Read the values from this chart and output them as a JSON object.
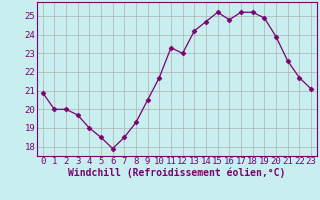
{
  "x": [
    0,
    1,
    2,
    3,
    4,
    5,
    6,
    7,
    8,
    9,
    10,
    11,
    12,
    13,
    14,
    15,
    16,
    17,
    18,
    19,
    20,
    21,
    22,
    23
  ],
  "y": [
    20.9,
    20.0,
    20.0,
    19.7,
    19.0,
    18.5,
    17.9,
    18.5,
    19.3,
    20.5,
    21.7,
    23.3,
    23.0,
    24.2,
    24.7,
    25.2,
    24.8,
    25.2,
    25.2,
    24.9,
    23.9,
    22.6,
    21.7,
    21.1
  ],
  "line_color": "#7b0070",
  "marker": "D",
  "marker_size": 2.5,
  "bg_color": "#c8eef0",
  "grid_color": "#b0b0b0",
  "ylim": [
    17.5,
    25.75
  ],
  "yticks": [
    18,
    19,
    20,
    21,
    22,
    23,
    24,
    25
  ],
  "xlabel": "Windchill (Refroidissement éolien,°C)",
  "xlabel_color": "#7b0070",
  "tick_color": "#7b0070",
  "font_size": 6.5
}
